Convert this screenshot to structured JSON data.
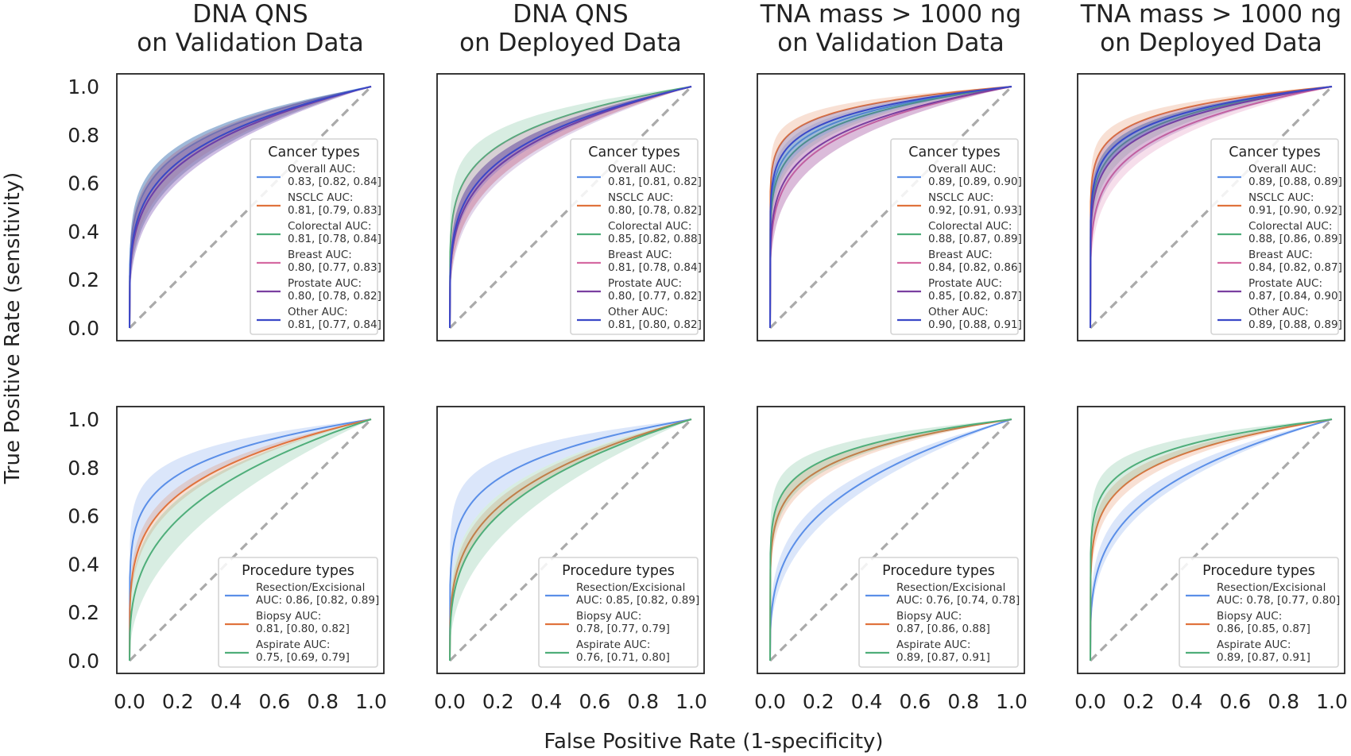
{
  "figure": {
    "ylabel": "True Positive Rate (sensitivity)",
    "xlabel": "False Positive Rate (1-specificity)"
  },
  "column_titles": [
    [
      "DNA QNS",
      "on Validation Data"
    ],
    [
      "DNA QNS",
      "on Deployed Data"
    ],
    [
      "TNA mass > 1000 ng",
      "on Validation Data"
    ],
    [
      "TNA mass > 1000 ng",
      "on Deployed Data"
    ]
  ],
  "colors": {
    "Overall": "#5b8fe8",
    "NSCLC": "#e0733d",
    "Colorectal": "#4fae7a",
    "Breast": "#d56aa2",
    "Prostate": "#7a3fa0",
    "Other": "#3a48c8",
    "Resection/Excisional": "#5b8fe8",
    "Biopsy": "#e0733d",
    "Aspirate": "#4fae7a",
    "diagonal": "#aaaaaa"
  },
  "chart_data": [
    {
      "type": "line",
      "row": 0,
      "col": 0,
      "xlabel": "",
      "ylabel": "",
      "xlim": [
        0,
        1
      ],
      "ylim": [
        0,
        1
      ],
      "xticks": [
        "0.0",
        "0.2",
        "0.4",
        "0.6",
        "0.8",
        "1.0"
      ],
      "yticks": [
        "0.0",
        "0.2",
        "0.4",
        "0.6",
        "0.8",
        "1.0"
      ],
      "legend": {
        "title": "Cancer types",
        "placement": "lower-right"
      },
      "series": [
        {
          "key": "Overall",
          "label": "Overall AUC:",
          "auc": "0.83, [0.82, 0.84]",
          "auc_value": 0.83
        },
        {
          "key": "NSCLC",
          "label": "NSCLC AUC:",
          "auc": "0.81, [0.79, 0.83]",
          "auc_value": 0.81
        },
        {
          "key": "Colorectal",
          "label": "Colorectal AUC:",
          "auc": "0.81, [0.78, 0.84]",
          "auc_value": 0.81
        },
        {
          "key": "Breast",
          "label": "Breast AUC:",
          "auc": "0.80, [0.77, 0.83]",
          "auc_value": 0.8
        },
        {
          "key": "Prostate",
          "label": "Prostate AUC:",
          "auc": "0.80, [0.78, 0.82]",
          "auc_value": 0.8
        },
        {
          "key": "Other",
          "label": "Other AUC:",
          "auc": "0.81, [0.77, 0.84]",
          "auc_value": 0.81
        }
      ]
    },
    {
      "type": "line",
      "row": 0,
      "col": 1,
      "xlim": [
        0,
        1
      ],
      "ylim": [
        0,
        1
      ],
      "legend": {
        "title": "Cancer types",
        "placement": "lower-right"
      },
      "series": [
        {
          "key": "Overall",
          "label": "Overall AUC:",
          "auc": "0.81, [0.81, 0.82]",
          "auc_value": 0.81
        },
        {
          "key": "NSCLC",
          "label": "NSCLC AUC:",
          "auc": "0.80, [0.78, 0.82]",
          "auc_value": 0.8
        },
        {
          "key": "Colorectal",
          "label": "Colorectal AUC:",
          "auc": "0.85, [0.82, 0.88]",
          "auc_value": 0.85
        },
        {
          "key": "Breast",
          "label": "Breast AUC:",
          "auc": "0.81, [0.78, 0.84]",
          "auc_value": 0.81
        },
        {
          "key": "Prostate",
          "label": "Prostate AUC:",
          "auc": "0.80, [0.77, 0.82]",
          "auc_value": 0.8
        },
        {
          "key": "Other",
          "label": "Other AUC:",
          "auc": "0.81, [0.80, 0.82]",
          "auc_value": 0.81
        }
      ]
    },
    {
      "type": "line",
      "row": 0,
      "col": 2,
      "xlim": [
        0,
        1
      ],
      "ylim": [
        0,
        1
      ],
      "legend": {
        "title": "Cancer types",
        "placement": "lower-right"
      },
      "series": [
        {
          "key": "Overall",
          "label": "Overall AUC:",
          "auc": "0.89, [0.89, 0.90]",
          "auc_value": 0.89
        },
        {
          "key": "NSCLC",
          "label": "NSCLC AUC:",
          "auc": "0.92, [0.91, 0.93]",
          "auc_value": 0.92
        },
        {
          "key": "Colorectal",
          "label": "Colorectal AUC:",
          "auc": "0.88, [0.87, 0.89]",
          "auc_value": 0.88
        },
        {
          "key": "Breast",
          "label": "Breast AUC:",
          "auc": "0.84, [0.82, 0.86]",
          "auc_value": 0.84
        },
        {
          "key": "Prostate",
          "label": "Prostate AUC:",
          "auc": "0.85, [0.82, 0.87]",
          "auc_value": 0.85
        },
        {
          "key": "Other",
          "label": "Other AUC:",
          "auc": "0.90, [0.88, 0.91]",
          "auc_value": 0.9
        }
      ]
    },
    {
      "type": "line",
      "row": 0,
      "col": 3,
      "xlim": [
        0,
        1
      ],
      "ylim": [
        0,
        1
      ],
      "legend": {
        "title": "Cancer types",
        "placement": "lower-right"
      },
      "series": [
        {
          "key": "Overall",
          "label": "Overall AUC:",
          "auc": "0.89, [0.88, 0.89]",
          "auc_value": 0.89
        },
        {
          "key": "NSCLC",
          "label": "NSCLC AUC:",
          "auc": "0.91, [0.90, 0.92]",
          "auc_value": 0.91
        },
        {
          "key": "Colorectal",
          "label": "Colorectal AUC:",
          "auc": "0.88, [0.86, 0.89]",
          "auc_value": 0.88
        },
        {
          "key": "Breast",
          "label": "Breast AUC:",
          "auc": "0.84, [0.82, 0.87]",
          "auc_value": 0.84
        },
        {
          "key": "Prostate",
          "label": "Prostate AUC:",
          "auc": "0.87, [0.84, 0.90]",
          "auc_value": 0.87
        },
        {
          "key": "Other",
          "label": "Other AUC:",
          "auc": "0.89, [0.88, 0.89]",
          "auc_value": 0.89
        }
      ]
    },
    {
      "type": "line",
      "row": 1,
      "col": 0,
      "xlim": [
        0,
        1
      ],
      "ylim": [
        0,
        1
      ],
      "legend": {
        "title": "Procedure types",
        "placement": "lower-right"
      },
      "series": [
        {
          "key": "Resection/Excisional",
          "label": "Resection/Excisional",
          "auc": "AUC: 0.86, [0.82, 0.89]",
          "auc_value": 0.86
        },
        {
          "key": "Biopsy",
          "label": "Biopsy AUC:",
          "auc": "0.81, [0.80, 0.82]",
          "auc_value": 0.81
        },
        {
          "key": "Aspirate",
          "label": "Aspirate AUC:",
          "auc": "0.75, [0.69, 0.79]",
          "auc_value": 0.75
        }
      ]
    },
    {
      "type": "line",
      "row": 1,
      "col": 1,
      "xlim": [
        0,
        1
      ],
      "ylim": [
        0,
        1
      ],
      "legend": {
        "title": "Procedure types",
        "placement": "lower-right"
      },
      "series": [
        {
          "key": "Resection/Excisional",
          "label": "Resection/Excisional",
          "auc": "AUC: 0.85, [0.82, 0.89]",
          "auc_value": 0.85
        },
        {
          "key": "Biopsy",
          "label": "Biopsy AUC:",
          "auc": "0.78, [0.77, 0.79]",
          "auc_value": 0.78
        },
        {
          "key": "Aspirate",
          "label": "Aspirate AUC:",
          "auc": "0.76, [0.71, 0.80]",
          "auc_value": 0.76
        }
      ]
    },
    {
      "type": "line",
      "row": 1,
      "col": 2,
      "xlim": [
        0,
        1
      ],
      "ylim": [
        0,
        1
      ],
      "legend": {
        "title": "Procedure types",
        "placement": "lower-right"
      },
      "series": [
        {
          "key": "Resection/Excisional",
          "label": "Resection/Excisional",
          "auc": "AUC: 0.76, [0.74, 0.78]",
          "auc_value": 0.76
        },
        {
          "key": "Biopsy",
          "label": "Biopsy AUC:",
          "auc": "0.87, [0.86, 0.88]",
          "auc_value": 0.87
        },
        {
          "key": "Aspirate",
          "label": "Aspirate AUC:",
          "auc": "0.89, [0.87, 0.91]",
          "auc_value": 0.89
        }
      ]
    },
    {
      "type": "line",
      "row": 1,
      "col": 3,
      "xlim": [
        0,
        1
      ],
      "ylim": [
        0,
        1
      ],
      "legend": {
        "title": "Procedure types",
        "placement": "lower-right"
      },
      "series": [
        {
          "key": "Resection/Excisional",
          "label": "Resection/Excisional",
          "auc": "AUC: 0.78, [0.77, 0.80]",
          "auc_value": 0.78
        },
        {
          "key": "Biopsy",
          "label": "Biopsy AUC:",
          "auc": "0.86, [0.85, 0.87]",
          "auc_value": 0.86
        },
        {
          "key": "Aspirate",
          "label": "Aspirate AUC:",
          "auc": "0.89, [0.87, 0.91]",
          "auc_value": 0.89
        }
      ]
    }
  ],
  "ticks": [
    "0.0",
    "0.2",
    "0.4",
    "0.6",
    "0.8",
    "1.0"
  ]
}
